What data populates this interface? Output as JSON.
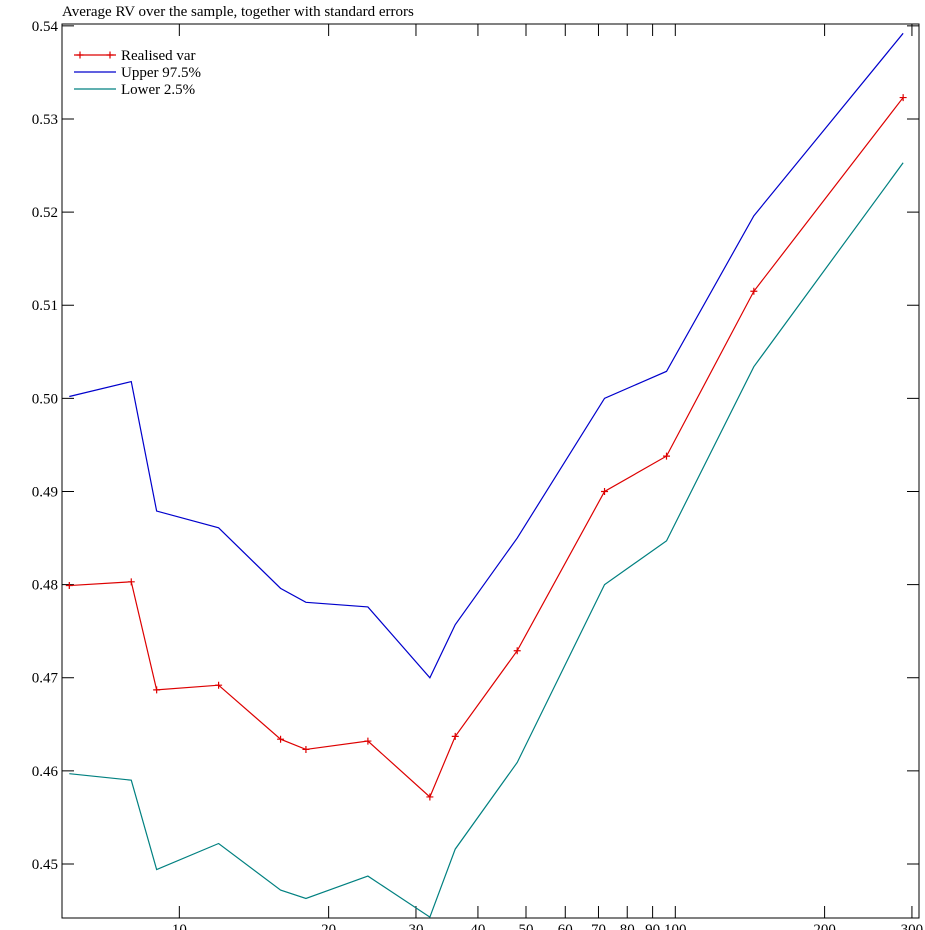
{
  "chart_data": {
    "type": "line",
    "title": "Average RV over the sample, together with standard errors",
    "xlabel": "",
    "ylabel": "",
    "xscale": "log",
    "xlim": [
      5.8,
      310
    ],
    "ylim": [
      0.4442,
      0.5402
    ],
    "grid": false,
    "legend_position": "top-left",
    "xticks": [
      10,
      20,
      30,
      40,
      50,
      60,
      70,
      80,
      90,
      100,
      200,
      300
    ],
    "xtick_labels": [
      "10",
      "20",
      "30",
      "40",
      "50",
      "60",
      "70",
      "80",
      "90",
      "100",
      "200",
      "300"
    ],
    "yticks": [
      0.45,
      0.46,
      0.47,
      0.48,
      0.49,
      0.5,
      0.51,
      0.52,
      0.53,
      0.54
    ],
    "ytick_labels": [
      "0.45",
      "0.46",
      "0.47",
      "0.48",
      "0.49",
      "0.50",
      "0.51",
      "0.52",
      "0.53",
      "0.54"
    ],
    "x": [
      6,
      8,
      9,
      12,
      16,
      18,
      24,
      32,
      36,
      48,
      72,
      96,
      144,
      288
    ],
    "series": [
      {
        "name": "Realised var",
        "color": "#dd0000",
        "marker": "plus",
        "values": [
          0.4799,
          0.4803,
          0.4687,
          0.4692,
          0.4634,
          0.4623,
          0.4632,
          0.4572,
          0.4637,
          0.4729,
          0.49,
          0.4938,
          0.5115,
          0.5323
        ]
      },
      {
        "name": "Upper 97.5%",
        "color": "#0000cc",
        "marker": "none",
        "values": [
          0.5002,
          0.5018,
          0.4879,
          0.4861,
          0.4796,
          0.4781,
          0.4776,
          0.47,
          0.4757,
          0.485,
          0.5,
          0.5029,
          0.5196,
          0.5392
        ]
      },
      {
        "name": "Lower 2.5%",
        "color": "#008080",
        "marker": "none",
        "values": [
          0.4597,
          0.459,
          0.4494,
          0.4522,
          0.4472,
          0.4463,
          0.4487,
          0.4443,
          0.4516,
          0.4609,
          0.48,
          0.4847,
          0.5034,
          0.5253
        ]
      }
    ]
  }
}
